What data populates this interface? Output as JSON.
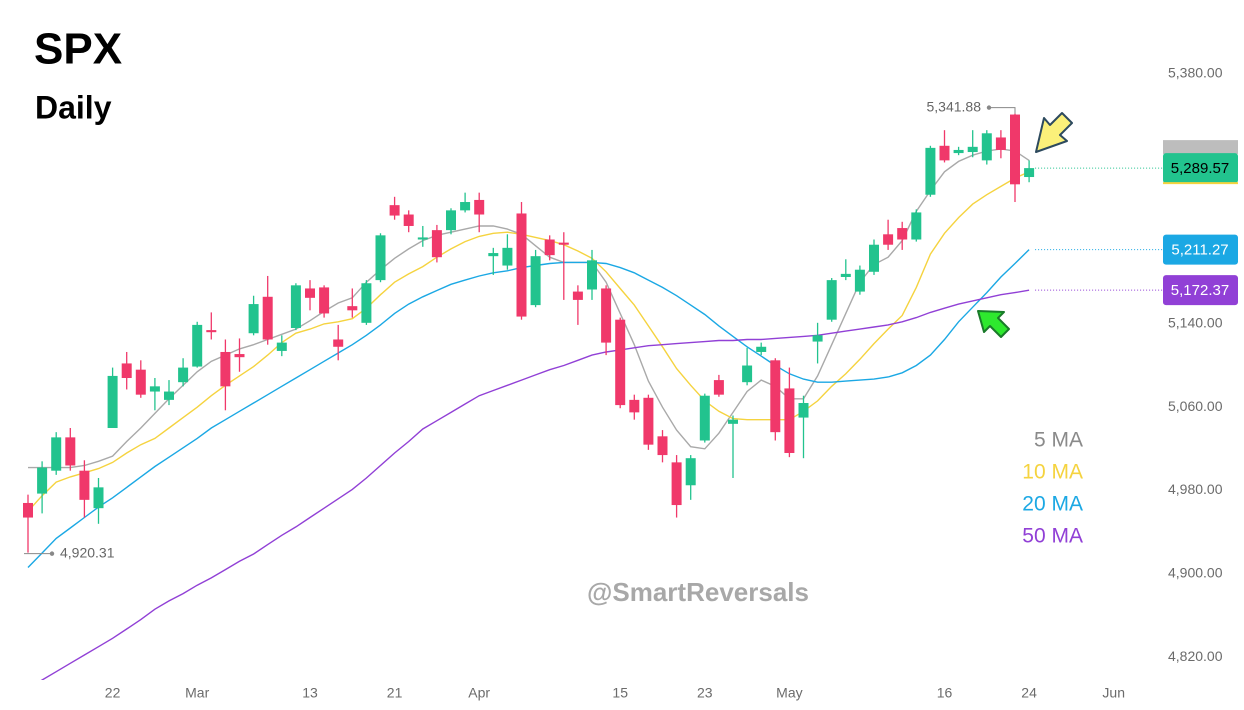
{
  "chart_data": {
    "type": "candlestick",
    "title": "SPX",
    "subtitle": "Daily",
    "watermark": "@SmartReversals",
    "up_color": "#22c38e",
    "down_color": "#f0386a",
    "categories": [
      null,
      null,
      null,
      null,
      null,
      null,
      "22",
      null,
      null,
      null,
      null,
      null,
      "Mar",
      null,
      null,
      null,
      null,
      null,
      null,
      null,
      "13",
      null,
      null,
      null,
      null,
      null,
      "21",
      null,
      null,
      null,
      null,
      null,
      "Apr",
      null,
      null,
      null,
      null,
      null,
      null,
      null,
      null,
      null,
      "15",
      null,
      null,
      null,
      null,
      null,
      "23",
      null,
      null,
      null,
      null,
      null,
      "May",
      null,
      null,
      null,
      null,
      null,
      null,
      null,
      null,
      null,
      null,
      "16",
      null,
      null,
      null,
      null,
      null,
      "24",
      null,
      null,
      null,
      null,
      null,
      "Jun"
    ],
    "open": [
      4968,
      4977,
      4999,
      5031,
      4999,
      4963,
      5040,
      5102,
      5096,
      5075,
      5067,
      5084,
      5099,
      5134,
      5113,
      5111,
      5131,
      5166,
      5114,
      5136,
      5174,
      5175,
      5125,
      5157,
      5141,
      5182,
      5254,
      5245,
      5221,
      5230,
      5230,
      5249,
      5259,
      5205,
      5196,
      5246,
      5158,
      5221,
      5218,
      5171,
      5173,
      5174,
      5144,
      5067,
      5069,
      5032,
      5007,
      4985,
      5028,
      5086,
      5044,
      5084,
      5113,
      5105,
      5078,
      5050,
      5123,
      5144,
      5185,
      5171,
      5190,
      5226,
      5232,
      5221,
      5264,
      5311,
      5304,
      5305,
      5297,
      5319,
      5341,
      5281,
      null,
      null,
      null,
      null,
      null,
      null
    ],
    "high": [
      4976,
      5008,
      5036,
      5040,
      5009,
      4992,
      5098,
      5113,
      5105,
      5088,
      5086,
      5107,
      5142,
      5151,
      5125,
      5126,
      5167,
      5186,
      5129,
      5179,
      5182,
      5177,
      5139,
      5174,
      5182,
      5227,
      5262,
      5249,
      5234,
      5235,
      5251,
      5266,
      5266,
      5213,
      5226,
      5257,
      5211,
      5225,
      5228,
      5177,
      5211,
      5177,
      5146,
      5072,
      5072,
      5038,
      5014,
      5014,
      5073,
      5091,
      5052,
      5117,
      5122,
      5107,
      5098,
      5071,
      5141,
      5184,
      5202,
      5196,
      5221,
      5240,
      5238,
      5250,
      5311,
      5326,
      5310,
      5326,
      5326,
      5326,
      5341.88,
      5297,
      null,
      null,
      null,
      null,
      null,
      null
    ],
    "low": [
      4920.31,
      4958,
      4995,
      4999,
      4954,
      4948,
      5040,
      5077,
      5069,
      5057,
      5062,
      5080,
      5098,
      5125,
      5057,
      5094,
      5129,
      5120,
      5109,
      5134,
      5153,
      5146,
      5105,
      5146,
      5139,
      5180,
      5240,
      5228,
      5214,
      5199,
      5226,
      5247,
      5228,
      5187,
      5192,
      5144,
      5156,
      5201,
      5163,
      5139,
      5163,
      5110,
      5059,
      5048,
      5019,
      5007,
      4954,
      4971,
      5026,
      5070,
      4992,
      5081,
      5110,
      5028,
      5012,
      5011,
      5102,
      5142,
      5182,
      5168,
      5187,
      5211,
      5211,
      5219,
      5262,
      5295,
      5302,
      5300,
      5293,
      5299,
      5257,
      5276,
      null,
      null,
      null,
      null,
      null,
      null
    ],
    "close": [
      4954,
      5002,
      5031,
      5004,
      4971,
      4983,
      5090,
      5088,
      5072,
      5080,
      5075,
      5098,
      5139,
      5132,
      5080,
      5108,
      5159,
      5125,
      5122,
      5177,
      5165,
      5150,
      5118,
      5153,
      5179,
      5225,
      5244,
      5234,
      5223,
      5204,
      5249,
      5257,
      5245,
      5208,
      5213,
      5147,
      5205,
      5206,
      5216,
      5163,
      5201,
      5122,
      5062,
      5055,
      5024,
      5014,
      4966,
      5011,
      5071,
      5072,
      5048,
      5100,
      5118,
      5036,
      5016,
      5064,
      5129,
      5182,
      5188,
      5192,
      5216,
      5216,
      5221,
      5247,
      5309,
      5297,
      5307,
      5310,
      5323,
      5307,
      5274,
      5289.57,
      null,
      null,
      null,
      null,
      null,
      null
    ],
    "high_label": "5,341.88",
    "low_label": "4,920.31",
    "close_label": "5,289.57",
    "series": [
      {
        "name": "5 MA",
        "color": "#a9a9a9",
        "values": [
          5002,
          5002,
          5002,
          5002,
          5004,
          5008,
          5013,
          5027,
          5040,
          5054,
          5068,
          5081,
          5094,
          5104,
          5110,
          5116,
          5120,
          5125,
          5130,
          5135,
          5143,
          5152,
          5160,
          5165,
          5180,
          5192,
          5203,
          5212,
          5220,
          5225,
          5228,
          5231,
          5234,
          5234,
          5231,
          5226,
          5215,
          5204,
          5199,
          5199,
          5199,
          5180,
          5150,
          5120,
          5085,
          5060,
          5038,
          5022,
          5020,
          5035,
          5055,
          5075,
          5086,
          5080,
          5068,
          5068,
          5090,
          5120,
          5150,
          5180,
          5197,
          5204,
          5220,
          5248,
          5268,
          5286,
          5296,
          5302,
          5306,
          5308,
          5306,
          5297,
          null,
          null,
          null,
          null,
          null,
          null
        ]
      },
      {
        "name": "10 MA",
        "color": "#f5d33f",
        "values": [
          4960,
          4975,
          4988,
          4993,
          4997,
          5001,
          5007,
          5016,
          5024,
          5030,
          5040,
          5050,
          5060,
          5071,
          5081,
          5090,
          5099,
          5110,
          5122,
          5131,
          5135,
          5140,
          5142,
          5145,
          5155,
          5168,
          5180,
          5188,
          5195,
          5204,
          5212,
          5219,
          5224,
          5227,
          5228,
          5226,
          5223,
          5220,
          5216,
          5210,
          5203,
          5190,
          5174,
          5158,
          5138,
          5118,
          5097,
          5081,
          5066,
          5056,
          5049,
          5048,
          5048,
          5048,
          5048,
          5056,
          5066,
          5080,
          5092,
          5106,
          5121,
          5135,
          5148,
          5175,
          5207,
          5227,
          5242,
          5255,
          5264,
          5272,
          5280,
          5286,
          null,
          null,
          null,
          null,
          null,
          null
        ]
      },
      {
        "name": "20 MA",
        "color": "#1ba8e4",
        "last_label": "5,211.27",
        "values": [
          4906,
          4920,
          4934,
          4944,
          4954,
          4964,
          4973,
          4983,
          4993,
          5003,
          5012,
          5021,
          5030,
          5040,
          5048,
          5056,
          5064,
          5072,
          5080,
          5088,
          5096,
          5104,
          5112,
          5120,
          5129,
          5139,
          5150,
          5159,
          5166,
          5172,
          5178,
          5182,
          5186,
          5189,
          5191,
          5194,
          5196,
          5198,
          5199,
          5199,
          5199,
          5198,
          5194,
          5189,
          5182,
          5175,
          5167,
          5158,
          5149,
          5138,
          5128,
          5118,
          5109,
          5100,
          5092,
          5087,
          5084,
          5084,
          5085,
          5086,
          5087,
          5089,
          5093,
          5100,
          5110,
          5125,
          5142,
          5156,
          5170,
          5185,
          5198,
          5211.27,
          null,
          null,
          null,
          null,
          null,
          null
        ]
      },
      {
        "name": "50 MA",
        "color": "#9140d6",
        "last_label": "5,172.37",
        "values": [
          4790,
          4798,
          4806,
          4814,
          4822,
          4830,
          4838,
          4847,
          4856,
          4866,
          4874,
          4881,
          4889,
          4896,
          4904,
          4912,
          4919,
          4928,
          4937,
          4945,
          4954,
          4963,
          4972,
          4981,
          4992,
          5004,
          5016,
          5027,
          5039,
          5047,
          5055,
          5063,
          5071,
          5076,
          5081,
          5086,
          5091,
          5096,
          5100,
          5105,
          5110,
          5113,
          5115,
          5117,
          5119,
          5120,
          5121,
          5122,
          5123,
          5124,
          5124,
          5125,
          5125,
          5126,
          5127,
          5128,
          5129,
          5131,
          5133,
          5135,
          5137,
          5139,
          5142,
          5146,
          5151,
          5155,
          5159,
          5162,
          5165,
          5168,
          5170,
          5172.37,
          null,
          null,
          null,
          null,
          null,
          null
        ]
      }
    ],
    "ylim": [
      4798,
      5451
    ],
    "yticks": [
      {
        "value": 4820,
        "label": "4,820.00"
      },
      {
        "value": 4900,
        "label": "4,900.00"
      },
      {
        "value": 4980,
        "label": "4,980.00"
      },
      {
        "value": 5060,
        "label": "5,060.00"
      },
      {
        "value": 5140,
        "label": "5,140.00"
      },
      {
        "value": 5380,
        "label": "5,380.00"
      }
    ],
    "grid": false
  }
}
